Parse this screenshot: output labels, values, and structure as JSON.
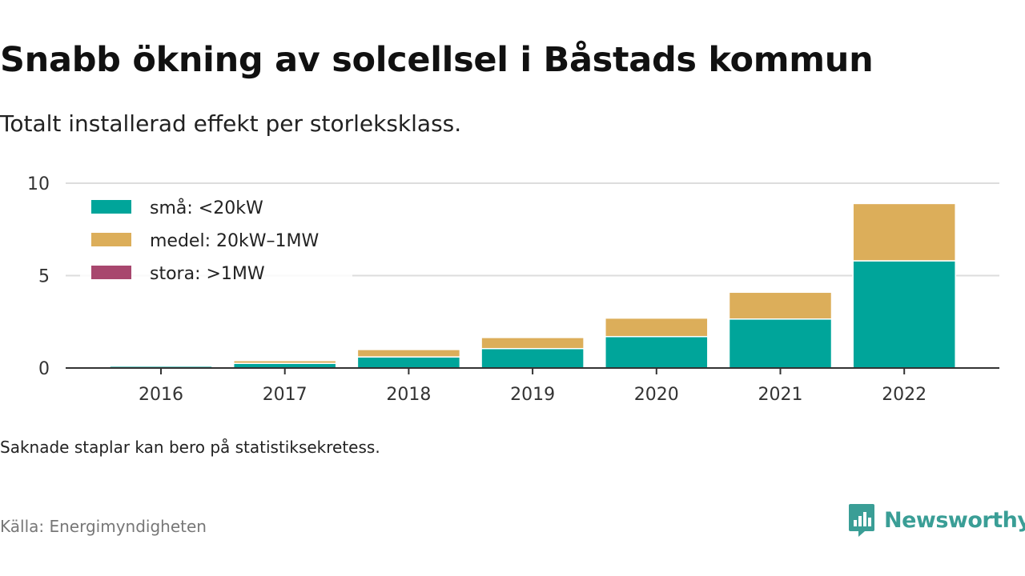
{
  "header": {
    "title": "Snabb ökning av solcellsel i Båstads kommun",
    "subtitle": "Totalt installerad effekt per storleksklass."
  },
  "footer": {
    "note": "Saknade staplar kan bero på statistiksekretess.",
    "source": "Källa: Energimyndigheten",
    "brand": "Newsworthy",
    "brand_icon": "newsworthy-logo-icon"
  },
  "colors": {
    "small": "#00a59a",
    "medium": "#dcae5a",
    "large": "#a8476e",
    "grid": "#dddddd",
    "axis": "#333333",
    "brand": "#3a9e96"
  },
  "chart_data": {
    "type": "bar",
    "stacked": true,
    "categories": [
      "2016",
      "2017",
      "2018",
      "2019",
      "2020",
      "2021",
      "2022"
    ],
    "series": [
      {
        "name": "små: <20kW",
        "values": [
          0.1,
          0.25,
          0.6,
          1.05,
          1.7,
          2.65,
          5.8
        ]
      },
      {
        "name": "medel: 20kW–1MW",
        "values": [
          0.0,
          0.15,
          0.4,
          0.6,
          1.0,
          1.45,
          3.1
        ]
      },
      {
        "name": "stora: >1MW",
        "values": [
          0,
          0,
          0,
          0,
          0,
          0,
          0
        ]
      }
    ],
    "yticks": [
      0,
      5,
      10
    ],
    "ylim": [
      0,
      10
    ],
    "grid": true,
    "legend_position": "top-left"
  }
}
